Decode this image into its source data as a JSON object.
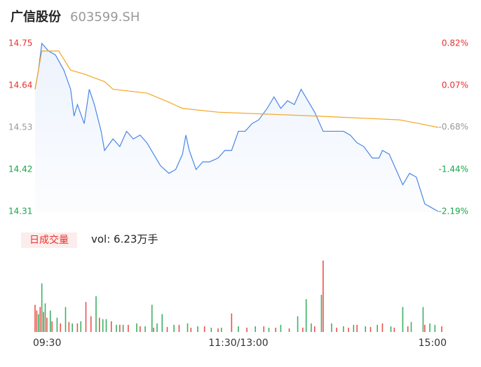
{
  "header": {
    "name": "广信股份",
    "code": "603599.SH"
  },
  "chart_data": [
    {
      "type": "line",
      "xlim": [
        0,
        240
      ],
      "xticks": [
        {
          "value": 0,
          "label": "09:30"
        },
        {
          "value": 120,
          "label": "11:30/13:00"
        },
        {
          "value": 240,
          "label": "15:00"
        }
      ],
      "ylim": [
        14.31,
        14.75
      ],
      "yticks": [
        14.75,
        14.64,
        14.53,
        14.42,
        14.31
      ],
      "y2lim": [
        -2.19,
        0.82
      ],
      "y2ticks": [
        {
          "value": 0.82,
          "label": "0.82%"
        },
        {
          "value": 0.07,
          "label": "0.07%"
        },
        {
          "value": -0.68,
          "label": "-0.68%"
        },
        {
          "value": -1.44,
          "label": "-1.44%"
        },
        {
          "value": -2.19,
          "label": "-2.19%"
        }
      ],
      "up_color": "#e8322d",
      "down_color": "#1aa34a",
      "flat_color": "#999999",
      "series": [
        {
          "color": "#4a86e8",
          "area": true,
          "x": [
            0,
            2,
            4,
            8,
            12,
            17,
            21,
            23,
            25,
            29,
            32,
            35,
            39,
            41,
            46,
            50,
            54,
            58,
            62,
            66,
            70,
            74,
            79,
            83,
            87,
            89,
            91,
            95,
            99,
            103,
            108,
            112,
            116,
            120,
            124,
            128,
            132,
            137,
            141,
            145,
            149,
            153,
            157,
            161,
            165,
            170,
            174,
            178,
            182,
            186,
            190,
            194,
            199,
            203,
            205,
            209,
            213,
            217,
            221,
            225,
            230,
            234,
            238
          ],
          "values": [
            14.63,
            14.68,
            14.75,
            14.73,
            14.72,
            14.68,
            14.63,
            14.56,
            14.59,
            14.54,
            14.63,
            14.59,
            14.52,
            14.47,
            14.5,
            14.48,
            14.52,
            14.5,
            14.51,
            14.49,
            14.46,
            14.43,
            14.41,
            14.42,
            14.46,
            14.51,
            14.47,
            14.42,
            14.44,
            14.44,
            14.45,
            14.47,
            14.47,
            14.52,
            14.52,
            14.54,
            14.55,
            14.58,
            14.61,
            14.58,
            14.6,
            14.59,
            14.63,
            14.6,
            14.57,
            14.52,
            14.52,
            14.52,
            14.52,
            14.51,
            14.49,
            14.48,
            14.45,
            14.45,
            14.47,
            14.46,
            14.42,
            14.38,
            14.41,
            14.4,
            14.33,
            14.32,
            14.31
          ]
        },
        {
          "color": "#f5a623",
          "area": false,
          "x": [
            0,
            4,
            14,
            21,
            29,
            41,
            46,
            66,
            77,
            87,
            108,
            165,
            215,
            227,
            238
          ],
          "values": [
            14.63,
            14.73,
            14.73,
            14.68,
            14.67,
            14.65,
            14.63,
            14.62,
            14.6,
            14.58,
            14.57,
            14.56,
            14.55,
            14.54,
            14.53
          ]
        }
      ]
    },
    {
      "type": "bar",
      "label": "日成交量",
      "summary": "vol: 6.23万手",
      "xlim": [
        0,
        240
      ],
      "ylim": [
        0,
        100
      ],
      "series": [
        {
          "color": "#e8322d",
          "x": [
            0,
            1,
            3,
            5,
            7,
            10,
            15,
            20,
            25,
            30,
            33,
            38,
            45,
            50,
            55,
            62,
            70,
            78,
            85,
            92,
            100,
            108,
            116,
            125,
            135,
            142,
            150,
            158,
            165,
            170,
            178,
            185,
            190,
            198,
            205,
            212,
            220,
            230,
            240
          ],
          "values": [
            38,
            30,
            35,
            28,
            20,
            15,
            12,
            14,
            12,
            42,
            22,
            20,
            15,
            10,
            10,
            8,
            6,
            7,
            10,
            6,
            8,
            5,
            26,
            6,
            8,
            6,
            5,
            6,
            8,
            100,
            6,
            6,
            10,
            7,
            12,
            6,
            8,
            10,
            8
          ]
        },
        {
          "color": "#1aa34a",
          "x": [
            2,
            4,
            6,
            9,
            13,
            18,
            22,
            27,
            36,
            40,
            42,
            48,
            52,
            60,
            65,
            69,
            72,
            75,
            82,
            90,
            96,
            104,
            110,
            120,
            130,
            138,
            145,
            155,
            160,
            163,
            169,
            175,
            182,
            188,
            195,
            202,
            210,
            217,
            222,
            229,
            233,
            236
          ],
          "values": [
            25,
            68,
            40,
            30,
            20,
            35,
            12,
            15,
            50,
            18,
            18,
            10,
            10,
            12,
            8,
            38,
            12,
            25,
            10,
            12,
            8,
            6,
            6,
            8,
            8,
            6,
            10,
            22,
            46,
            12,
            52,
            12,
            8,
            10,
            8,
            10,
            8,
            35,
            14,
            35,
            12,
            10
          ]
        }
      ]
    }
  ]
}
